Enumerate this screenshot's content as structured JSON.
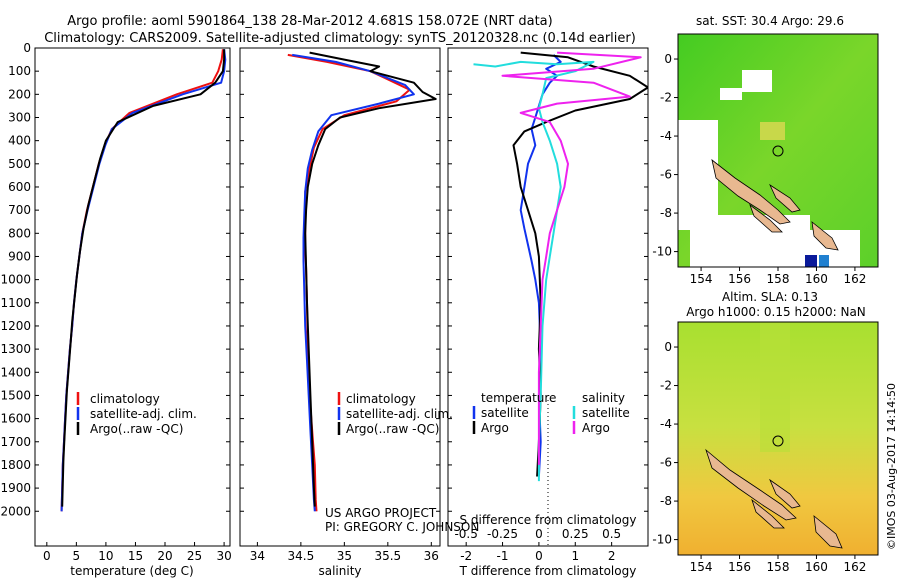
{
  "title": {
    "line1": "Argo profile: aoml 5901864_138 28-Mar-2012 4.681S 158.072E (NRT data)",
    "line2": "Climatology: CARS2009. Satellite-adjusted climatology: synTS_20120328.nc (0.14d earlier)"
  },
  "credit": {
    "project": "US ARGO PROJECT",
    "pi": "PI: GREGORY C. JOHNSON",
    "imos": "©IMOS 03-Aug-2017 14:14:50"
  },
  "colors": {
    "climatology": "#ee1111",
    "satellite": "#1133ee",
    "argo": "#000000",
    "argo_salinity": "#ee22ee",
    "satellite_salinity": "#22dddd",
    "land": "#e8b890"
  },
  "chart_data": [
    {
      "type": "line",
      "name": "temperature-profile",
      "xlabel": "temperature (deg C)",
      "ylabel": "",
      "xlim": [
        -2,
        31
      ],
      "ylim": [
        2150,
        0
      ],
      "xticks": [
        0,
        5,
        10,
        15,
        20,
        25,
        30
      ],
      "yticks": [
        0,
        100,
        200,
        300,
        400,
        500,
        600,
        700,
        800,
        900,
        1000,
        1100,
        1200,
        1300,
        1400,
        1500,
        1600,
        1700,
        1800,
        1900,
        2000
      ],
      "legend": [
        "climatology",
        "satellite-adj. clim.",
        "Argo(..raw -QC)"
      ],
      "series": [
        {
          "name": "climatology",
          "color_key": "climatology",
          "points": [
            [
              29.8,
              5
            ],
            [
              29.6,
              50
            ],
            [
              29,
              100
            ],
            [
              28,
              150
            ],
            [
              22,
              200
            ],
            [
              14,
              280
            ],
            [
              11,
              350
            ],
            [
              9.8,
              420
            ],
            [
              8.8,
              500
            ],
            [
              7.8,
              600
            ],
            [
              6.8,
              700
            ],
            [
              6,
              800
            ],
            [
              5.5,
              900
            ],
            [
              5,
              1000
            ],
            [
              4.6,
              1100
            ],
            [
              4.3,
              1200
            ],
            [
              3.9,
              1300
            ],
            [
              3.6,
              1400
            ],
            [
              3.3,
              1500
            ],
            [
              3.1,
              1600
            ],
            [
              2.9,
              1700
            ],
            [
              2.7,
              1800
            ],
            [
              2.6,
              1900
            ],
            [
              2.5,
              2000
            ]
          ]
        },
        {
          "name": "satellite-adj. clim.",
          "color_key": "satellite",
          "points": [
            [
              30,
              5
            ],
            [
              30.2,
              50
            ],
            [
              30,
              100
            ],
            [
              29.5,
              150
            ],
            [
              23,
              200
            ],
            [
              14.5,
              280
            ],
            [
              11,
              350
            ],
            [
              9.9,
              420
            ],
            [
              8.9,
              500
            ],
            [
              7.9,
              600
            ],
            [
              6.9,
              700
            ],
            [
              6,
              800
            ],
            [
              5.5,
              900
            ],
            [
              5,
              1000
            ],
            [
              4.6,
              1100
            ],
            [
              4.3,
              1200
            ],
            [
              3.9,
              1300
            ],
            [
              3.6,
              1400
            ],
            [
              3.3,
              1500
            ],
            [
              3.1,
              1600
            ],
            [
              2.9,
              1700
            ],
            [
              2.7,
              1800
            ],
            [
              2.6,
              1900
            ],
            [
              2.5,
              2000
            ]
          ]
        },
        {
          "name": "Argo(..raw -QC)",
          "color_key": "argo",
          "points": [
            [
              30,
              5
            ],
            [
              30,
              50
            ],
            [
              29.8,
              100
            ],
            [
              28.5,
              150
            ],
            [
              26,
              200
            ],
            [
              18,
              250
            ],
            [
              12,
              320
            ],
            [
              10,
              400
            ],
            [
              9,
              480
            ],
            [
              8,
              580
            ],
            [
              7,
              680
            ],
            [
              6.2,
              780
            ],
            [
              5.6,
              880
            ],
            [
              5.1,
              980
            ],
            [
              4.7,
              1080
            ],
            [
              4.3,
              1180
            ],
            [
              4,
              1280
            ],
            [
              3.7,
              1380
            ],
            [
              3.4,
              1480
            ],
            [
              3.2,
              1580
            ],
            [
              3,
              1680
            ],
            [
              2.8,
              1780
            ],
            [
              2.7,
              1880
            ],
            [
              2.6,
              1980
            ]
          ]
        }
      ]
    },
    {
      "type": "line",
      "name": "salinity-profile",
      "xlabel": "salinity",
      "xlim": [
        33.8,
        36.1
      ],
      "ylim": [
        2150,
        0
      ],
      "xticks": [
        34,
        34.5,
        35,
        35.5,
        36
      ],
      "legend": [
        "climatology",
        "satellite-adj. clim.",
        "Argo(..raw -QC)"
      ],
      "series": [
        {
          "name": "climatology",
          "color_key": "climatology",
          "points": [
            [
              34.35,
              30
            ],
            [
              34.8,
              60
            ],
            [
              35.3,
              100
            ],
            [
              35.75,
              180
            ],
            [
              35.6,
              230
            ],
            [
              35,
              290
            ],
            [
              34.75,
              350
            ],
            [
              34.65,
              430
            ],
            [
              34.6,
              520
            ],
            [
              34.55,
              620
            ],
            [
              34.55,
              720
            ],
            [
              34.55,
              800
            ],
            [
              34.55,
              860
            ],
            [
              34.56,
              950
            ],
            [
              34.57,
              1100
            ],
            [
              34.58,
              1300
            ],
            [
              34.6,
              1500
            ],
            [
              34.62,
              1600
            ],
            [
              34.64,
              1700
            ],
            [
              34.66,
              1800
            ],
            [
              34.67,
              1950
            ],
            [
              34.68,
              2000
            ]
          ]
        },
        {
          "name": "satellite-adj. clim.",
          "color_key": "satellite",
          "points": [
            [
              34.4,
              30
            ],
            [
              34.9,
              60
            ],
            [
              35.3,
              100
            ],
            [
              35.7,
              160
            ],
            [
              35.8,
              200
            ],
            [
              35.4,
              240
            ],
            [
              34.85,
              290
            ],
            [
              34.7,
              360
            ],
            [
              34.63,
              440
            ],
            [
              34.58,
              520
            ],
            [
              34.55,
              620
            ],
            [
              34.54,
              720
            ],
            [
              34.53,
              820
            ],
            [
              34.53,
              920
            ],
            [
              34.54,
              1050
            ],
            [
              34.55,
              1200
            ],
            [
              34.57,
              1350
            ],
            [
              34.59,
              1500
            ],
            [
              34.61,
              1650
            ],
            [
              34.63,
              1800
            ],
            [
              34.65,
              1950
            ],
            [
              34.66,
              2000
            ]
          ]
        },
        {
          "name": "Argo(..raw -QC)",
          "color_key": "argo",
          "points": [
            [
              34.6,
              20
            ],
            [
              35,
              50
            ],
            [
              35.4,
              80
            ],
            [
              35.3,
              100
            ],
            [
              35.8,
              150
            ],
            [
              35.9,
              190
            ],
            [
              36.05,
              220
            ],
            [
              35.4,
              260
            ],
            [
              34.95,
              300
            ],
            [
              34.78,
              350
            ],
            [
              34.7,
              420
            ],
            [
              34.63,
              500
            ],
            [
              34.58,
              600
            ],
            [
              34.56,
              700
            ],
            [
              34.55,
              800
            ],
            [
              34.56,
              950
            ],
            [
              34.57,
              1100
            ],
            [
              34.59,
              1300
            ],
            [
              34.61,
              1500
            ],
            [
              34.63,
              1700
            ],
            [
              34.65,
              1900
            ],
            [
              34.66,
              1980
            ]
          ]
        }
      ]
    },
    {
      "type": "line",
      "name": "difference-profile",
      "xlabel": "T difference from climatology",
      "xlabel_top": "S difference from climatology",
      "xlim": [
        -2.5,
        3
      ],
      "ylim": [
        2150,
        0
      ],
      "xticks": [
        -2,
        -1,
        0,
        1,
        2
      ],
      "xticks_top": [
        "-0.5",
        "-0.25",
        "0",
        "0.25",
        "0.5"
      ],
      "legend_temperature_title": "temperature",
      "legend_salinity_title": "salinity",
      "legend_labels": [
        "satellite",
        "Argo",
        "satellite",
        "Argo"
      ],
      "series": [
        {
          "name": "temperature satellite",
          "color_key": "satellite",
          "points": [
            [
              0.4,
              30
            ],
            [
              0.6,
              60
            ],
            [
              0.2,
              90
            ],
            [
              0.5,
              120
            ],
            [
              0.3,
              150
            ],
            [
              0.1,
              200
            ],
            [
              0,
              250
            ],
            [
              -0.1,
              300
            ],
            [
              -0.2,
              350
            ],
            [
              -0.1,
              420
            ],
            [
              -0.3,
              500
            ],
            [
              -0.4,
              600
            ],
            [
              -0.5,
              700
            ],
            [
              -0.4,
              780
            ],
            [
              -0.3,
              850
            ],
            [
              -0.2,
              920
            ],
            [
              -0.1,
              1000
            ],
            [
              0,
              1100
            ],
            [
              0.05,
              1300
            ],
            [
              0,
              1500
            ],
            [
              0.05,
              1700
            ],
            [
              0,
              1850
            ]
          ]
        },
        {
          "name": "temperature Argo",
          "color_key": "argo",
          "points": [
            [
              -0.5,
              20
            ],
            [
              0.8,
              40
            ],
            [
              1.5,
              80
            ],
            [
              2.5,
              120
            ],
            [
              3,
              170
            ],
            [
              2.5,
              220
            ],
            [
              1,
              270
            ],
            [
              0.2,
              320
            ],
            [
              -0.4,
              360
            ],
            [
              -0.7,
              420
            ],
            [
              -0.6,
              500
            ],
            [
              -0.5,
              600
            ],
            [
              -0.3,
              700
            ],
            [
              -0.1,
              800
            ],
            [
              0,
              900
            ],
            [
              0.05,
              1100
            ],
            [
              0,
              1300
            ],
            [
              0.05,
              1500
            ],
            [
              0,
              1700
            ],
            [
              -0.05,
              1850
            ]
          ]
        },
        {
          "name": "salinity satellite",
          "color_key": "satellite_salinity",
          "points": [
            [
              -1.8,
              70
            ],
            [
              -1.2,
              80
            ],
            [
              -0.5,
              60
            ],
            [
              0.5,
              70
            ],
            [
              1.5,
              60
            ],
            [
              1,
              100
            ],
            [
              0.2,
              130
            ],
            [
              0.1,
              200
            ],
            [
              0,
              260
            ],
            [
              0.1,
              320
            ],
            [
              0.3,
              400
            ],
            [
              0.5,
              500
            ],
            [
              0.6,
              600
            ],
            [
              0.5,
              700
            ],
            [
              0.4,
              800
            ],
            [
              0.3,
              900
            ],
            [
              0.2,
              1000
            ],
            [
              0.1,
              1200
            ],
            [
              0.05,
              1500
            ],
            [
              0,
              1700
            ],
            [
              0,
              1870
            ]
          ]
        },
        {
          "name": "salinity Argo",
          "color_key": "argo_salinity",
          "points": [
            [
              0.5,
              20
            ],
            [
              2.8,
              40
            ],
            [
              1.5,
              90
            ],
            [
              -1,
              120
            ],
            [
              1.5,
              150
            ],
            [
              2.5,
              210
            ],
            [
              0.5,
              240
            ],
            [
              -0.5,
              280
            ],
            [
              0.3,
              320
            ],
            [
              0.6,
              400
            ],
            [
              0.8,
              500
            ],
            [
              0.7,
              600
            ],
            [
              0.5,
              700
            ],
            [
              0.3,
              800
            ],
            [
              0.2,
              900
            ],
            [
              0.1,
              1000
            ],
            [
              0.05,
              1200
            ],
            [
              0,
              1400
            ],
            [
              0,
              1600
            ],
            [
              0,
              1800
            ]
          ]
        }
      ]
    }
  ],
  "maps": {
    "sst": {
      "title": "sat. SST: 30.4  Argo: 29.6",
      "xticks": [
        "154",
        "156",
        "158",
        "160",
        "162"
      ],
      "yticks": [
        "0",
        "-2",
        "-4",
        "-6",
        "-8",
        "-10"
      ]
    },
    "sla": {
      "title1": "Altim. SLA: 0.13",
      "title2": "Argo h1000: 0.15  h2000: NaN",
      "xticks": [
        "154",
        "156",
        "158",
        "160",
        "162"
      ],
      "yticks": [
        "0",
        "-2",
        "-4",
        "-6",
        "-8",
        "-10"
      ]
    }
  }
}
